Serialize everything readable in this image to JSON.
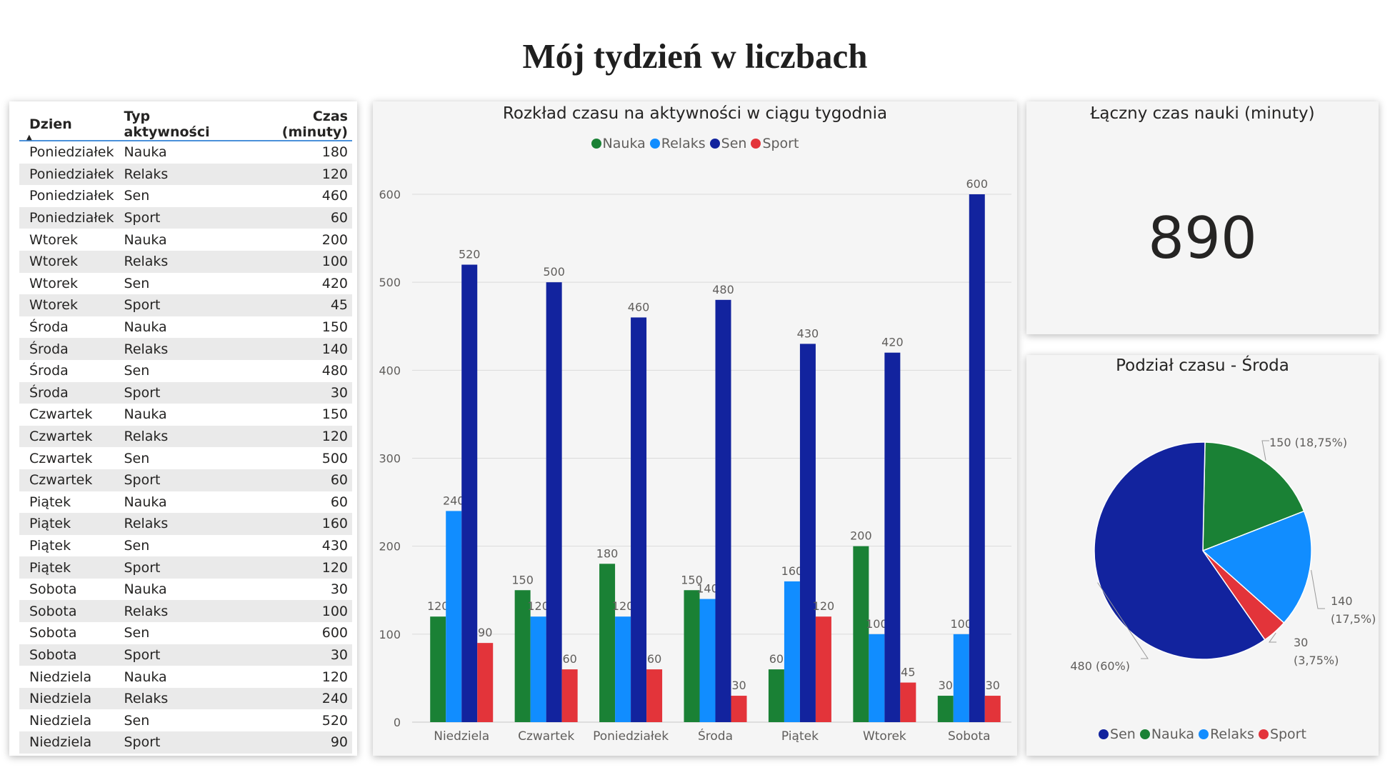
{
  "page_title": "Mój tydzień w liczbach",
  "table": {
    "headers": [
      "Dzien",
      "Typ aktywności",
      "Czas (minuty)"
    ],
    "rows": [
      [
        "Poniedziałek",
        "Nauka",
        "180"
      ],
      [
        "Poniedziałek",
        "Relaks",
        "120"
      ],
      [
        "Poniedziałek",
        "Sen",
        "460"
      ],
      [
        "Poniedziałek",
        "Sport",
        "60"
      ],
      [
        "Wtorek",
        "Nauka",
        "200"
      ],
      [
        "Wtorek",
        "Relaks",
        "100"
      ],
      [
        "Wtorek",
        "Sen",
        "420"
      ],
      [
        "Wtorek",
        "Sport",
        "45"
      ],
      [
        "Środa",
        "Nauka",
        "150"
      ],
      [
        "Środa",
        "Relaks",
        "140"
      ],
      [
        "Środa",
        "Sen",
        "480"
      ],
      [
        "Środa",
        "Sport",
        "30"
      ],
      [
        "Czwartek",
        "Nauka",
        "150"
      ],
      [
        "Czwartek",
        "Relaks",
        "120"
      ],
      [
        "Czwartek",
        "Sen",
        "500"
      ],
      [
        "Czwartek",
        "Sport",
        "60"
      ],
      [
        "Piątek",
        "Nauka",
        "60"
      ],
      [
        "Piątek",
        "Relaks",
        "160"
      ],
      [
        "Piątek",
        "Sen",
        "430"
      ],
      [
        "Piątek",
        "Sport",
        "120"
      ],
      [
        "Sobota",
        "Nauka",
        "30"
      ],
      [
        "Sobota",
        "Relaks",
        "100"
      ],
      [
        "Sobota",
        "Sen",
        "600"
      ],
      [
        "Sobota",
        "Sport",
        "30"
      ],
      [
        "Niedziela",
        "Nauka",
        "120"
      ],
      [
        "Niedziela",
        "Relaks",
        "240"
      ],
      [
        "Niedziela",
        "Sen",
        "520"
      ],
      [
        "Niedziela",
        "Sport",
        "90"
      ]
    ]
  },
  "colors": {
    "Nauka": "#1a8135",
    "Relaks": "#118dff",
    "Sen": "#12239e",
    "Sport": "#e3343a"
  },
  "kpi": {
    "title": "Łączny czas nauki (minuty)",
    "value": "890"
  },
  "chart_data": [
    {
      "type": "bar",
      "title": "Rozkład czasu na aktywności w ciągu tygodnia",
      "categories": [
        "Niedziela",
        "Czwartek",
        "Poniedziałek",
        "Środa",
        "Piątek",
        "Wtorek",
        "Sobota"
      ],
      "series": [
        {
          "name": "Nauka",
          "values": [
            120,
            150,
            180,
            150,
            60,
            200,
            30
          ]
        },
        {
          "name": "Relaks",
          "values": [
            240,
            120,
            120,
            140,
            160,
            100,
            100
          ]
        },
        {
          "name": "Sen",
          "values": [
            520,
            500,
            460,
            480,
            430,
            420,
            600
          ]
        },
        {
          "name": "Sport",
          "values": [
            90,
            60,
            60,
            30,
            120,
            45,
            30
          ]
        }
      ],
      "ylim": [
        0,
        600
      ],
      "yticks": [
        0,
        100,
        200,
        300,
        400,
        500,
        600
      ],
      "grid": true,
      "legend": "top-center"
    },
    {
      "type": "pie",
      "title": "Podział czasu - Środa",
      "labels": [
        "Sen",
        "Nauka",
        "Relaks",
        "Sport"
      ],
      "values": [
        480,
        150,
        140,
        30
      ],
      "data_labels": [
        "480 (60%)",
        "150 (18,75%)",
        "140 (17,5%)",
        "30 (3,75%)"
      ],
      "legend": "bottom-center"
    }
  ]
}
